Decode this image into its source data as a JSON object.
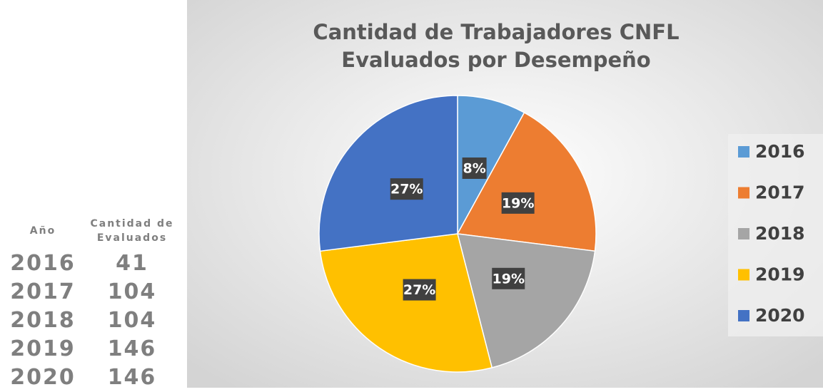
{
  "table": {
    "headers": [
      "Año",
      "Cantidad de Evaluados"
    ],
    "rows": [
      [
        "2016",
        41
      ],
      [
        "2017",
        104
      ],
      [
        "2018",
        104
      ],
      [
        "2019",
        146
      ],
      [
        "2020",
        146
      ]
    ]
  },
  "chart_data": {
    "type": "pie",
    "title": [
      "Cantidad de Trabajadores CNFL",
      "Evaluados por Desempeño"
    ],
    "categories": [
      "2016",
      "2017",
      "2018",
      "2019",
      "2020"
    ],
    "values": [
      8,
      19,
      19,
      27,
      27
    ],
    "value_labels": [
      "8%",
      "19%",
      "19%",
      "27%",
      "27%"
    ],
    "colors": [
      "#5b9bd5",
      "#ed7d31",
      "#a5a5a5",
      "#ffc000",
      "#4472c4"
    ],
    "legend": "right"
  }
}
